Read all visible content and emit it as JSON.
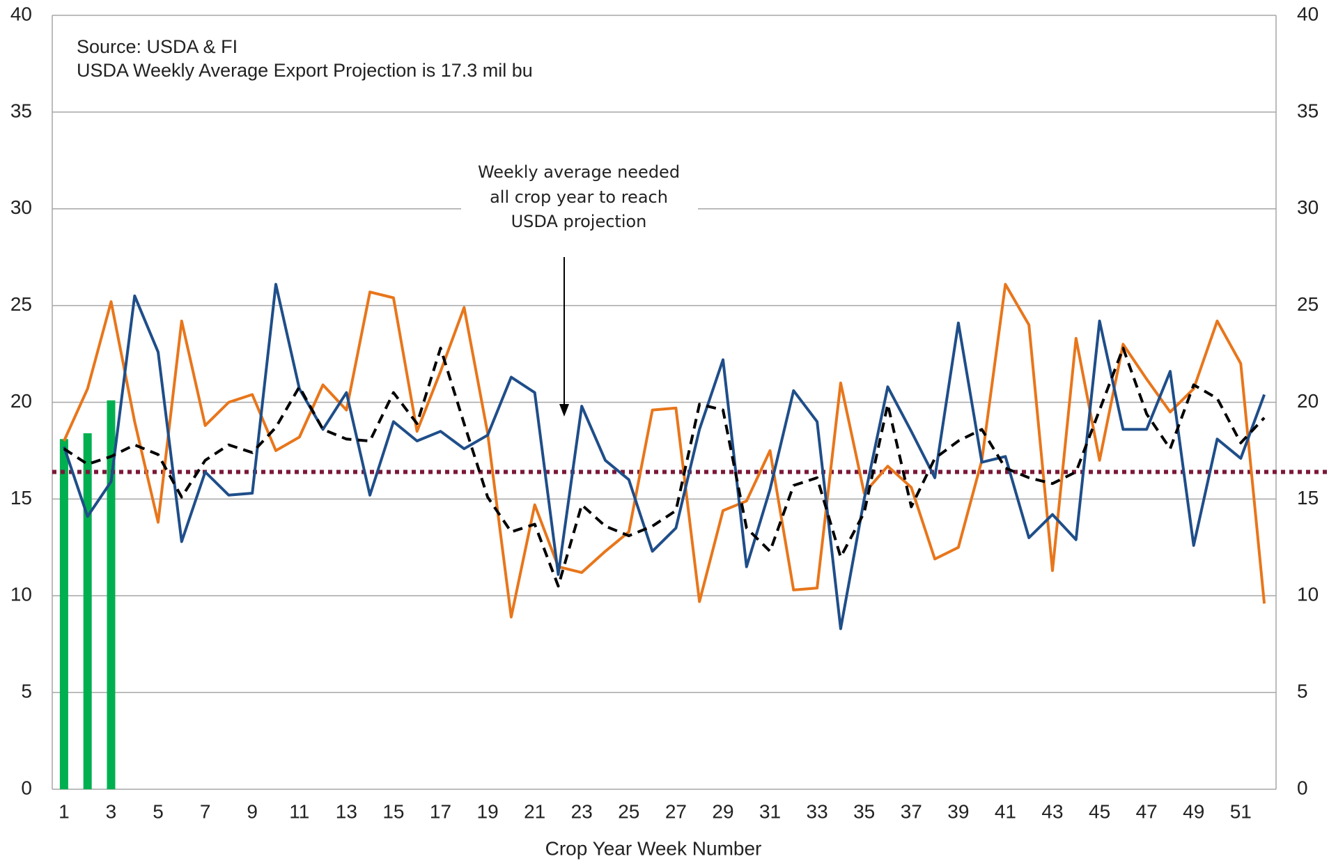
{
  "chart_data": {
    "type": "combo",
    "x_label": "Crop Year Week Number",
    "notes": [
      "Source: USDA & FI",
      "USDA Weekly Average Export Projection is 17.3 mil bu"
    ],
    "annotation": [
      "Weekly average needed",
      "all crop year to reach",
      "USDA projection"
    ],
    "x": [
      1,
      2,
      3,
      4,
      5,
      6,
      7,
      8,
      9,
      10,
      11,
      12,
      13,
      14,
      15,
      16,
      17,
      18,
      19,
      20,
      21,
      22,
      23,
      24,
      25,
      26,
      27,
      28,
      29,
      30,
      31,
      32,
      33,
      34,
      35,
      36,
      37,
      38,
      39,
      40,
      41,
      42,
      43,
      44,
      45,
      46,
      47,
      48,
      49,
      50,
      51,
      52
    ],
    "xlim": [
      0.5,
      52.5
    ],
    "xticks": [
      1,
      3,
      5,
      7,
      9,
      11,
      13,
      15,
      17,
      19,
      21,
      23,
      25,
      27,
      29,
      31,
      33,
      35,
      37,
      39,
      41,
      43,
      45,
      47,
      49,
      51
    ],
    "ylim": [
      0,
      40
    ],
    "yticks": [
      0,
      5,
      10,
      15,
      20,
      25,
      30,
      35,
      40
    ],
    "y2lim": [
      0,
      40
    ],
    "y2ticks": [
      0,
      5,
      10,
      15,
      20,
      25,
      30,
      35,
      40
    ],
    "grid": true,
    "series": [
      {
        "type": "bar",
        "color": "#00b050",
        "values": [
          18.1,
          18.4,
          20.1,
          null,
          null,
          null,
          null,
          null,
          null,
          null,
          null,
          null,
          null,
          null,
          null,
          null,
          null,
          null,
          null,
          null,
          null,
          null,
          null,
          null,
          null,
          null,
          null,
          null,
          null,
          null,
          null,
          null,
          null,
          null,
          null,
          null,
          null,
          null,
          null,
          null,
          null,
          null,
          null,
          null,
          null,
          null,
          null,
          null,
          null,
          null,
          null,
          null
        ]
      },
      {
        "type": "line",
        "color": "#e8761b",
        "values": [
          18.0,
          20.7,
          25.2,
          19.0,
          13.8,
          24.2,
          18.8,
          20.0,
          20.4,
          17.5,
          18.2,
          20.9,
          19.6,
          25.7,
          25.4,
          18.5,
          21.6,
          24.9,
          18.4,
          8.9,
          14.7,
          11.5,
          11.2,
          12.3,
          13.3,
          19.6,
          19.7,
          9.7,
          14.4,
          14.9,
          17.5,
          10.3,
          10.4,
          21.0,
          15.3,
          16.7,
          15.6,
          11.9,
          12.5,
          17.0,
          26.1,
          24.0,
          11.3,
          23.3,
          17.0,
          23.0,
          21.2,
          19.5,
          20.7,
          24.2,
          22.0,
          9.6
        ]
      },
      {
        "type": "line",
        "color": "#1f4e89",
        "values": [
          17.7,
          14.1,
          15.9,
          25.5,
          22.6,
          12.8,
          16.4,
          15.2,
          15.3,
          26.1,
          20.7,
          18.6,
          20.5,
          15.2,
          19.0,
          18.0,
          18.5,
          17.6,
          18.3,
          21.3,
          20.5,
          11.1,
          19.8,
          17.0,
          16.0,
          12.3,
          13.5,
          18.6,
          22.2,
          11.5,
          15.5,
          20.6,
          19.0,
          8.3,
          15.0,
          20.8,
          18.5,
          16.1,
          24.1,
          16.9,
          17.2,
          13.0,
          14.2,
          12.9,
          24.2,
          18.6,
          18.6,
          21.6,
          12.6,
          18.1,
          17.1,
          20.4
        ]
      },
      {
        "type": "line",
        "color": "#000000",
        "dash": true,
        "values": [
          17.6,
          16.8,
          17.2,
          17.8,
          17.3,
          15.1,
          17.0,
          17.8,
          17.4,
          18.7,
          20.8,
          18.6,
          18.1,
          18.0,
          20.5,
          18.9,
          22.8,
          18.9,
          15.1,
          13.3,
          13.7,
          10.5,
          14.7,
          13.6,
          13.1,
          13.6,
          14.4,
          19.9,
          19.6,
          13.5,
          12.3,
          15.7,
          16.1,
          12.0,
          14.3,
          19.9,
          14.6,
          17.1,
          18.0,
          18.6,
          16.6,
          16.1,
          15.8,
          16.4,
          19.6,
          22.8,
          19.4,
          17.6,
          20.9,
          20.2,
          17.9,
          19.2
        ]
      }
    ],
    "hlines": [
      {
        "value": 16.4,
        "color": "#7b1838"
      }
    ]
  }
}
